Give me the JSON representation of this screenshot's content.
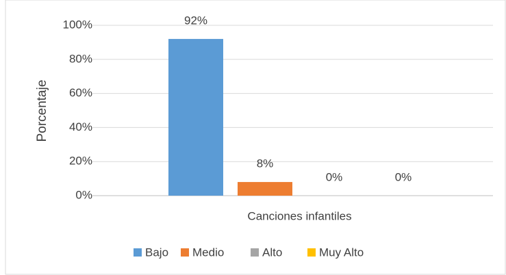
{
  "chart_data": {
    "type": "bar",
    "categories": [
      "Canciones infantiles"
    ],
    "y_label": "Porcentaje",
    "series": [
      {
        "name": "Bajo",
        "color": "#5b9bd5",
        "values": [
          92
        ],
        "value_labels": [
          "92%"
        ]
      },
      {
        "name": "Medio",
        "color": "#ed7d31",
        "values": [
          8
        ],
        "value_labels": [
          "8%"
        ]
      },
      {
        "name": "Alto",
        "color": "#a5a5a5",
        "values": [
          0
        ],
        "value_labels": [
          "0%"
        ]
      },
      {
        "name": "Muy Alto",
        "color": "#ffc000",
        "values": [
          0
        ],
        "value_labels": [
          "0%"
        ]
      }
    ],
    "ylim": [
      0,
      100
    ],
    "yticks": [
      {
        "value": 0,
        "label": "0%"
      },
      {
        "value": 20,
        "label": "20%"
      },
      {
        "value": 40,
        "label": "40%"
      },
      {
        "value": 60,
        "label": "60%"
      },
      {
        "value": 80,
        "label": "80%"
      },
      {
        "value": 100,
        "label": "100%"
      }
    ],
    "grid": true,
    "legend": "bottom"
  }
}
